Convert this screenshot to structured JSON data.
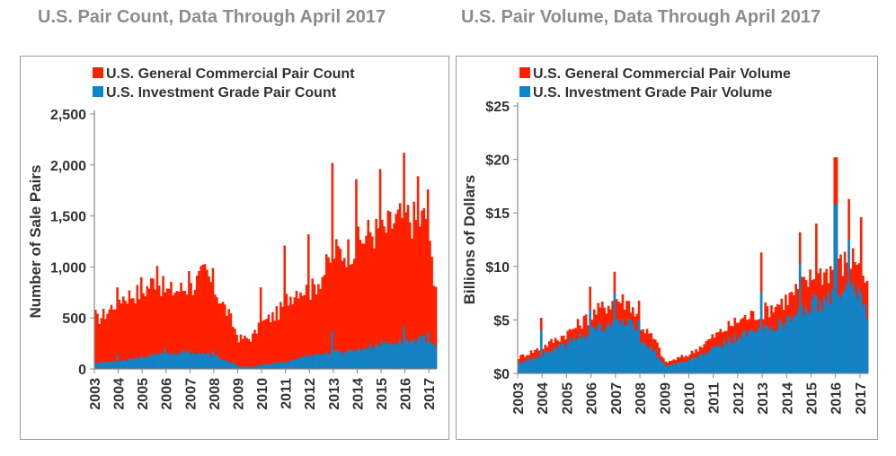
{
  "colors": {
    "general": "#ff2000",
    "investment": "#0a86cc",
    "title": "#8c8c8c",
    "axis": "#888888"
  },
  "chart_data": [
    {
      "type": "bar",
      "stacked": true,
      "title": "U.S. Pair Count, Data Through April 2017",
      "ylabel": "Number of Sale Pairs",
      "xlabel": "",
      "ylim": [
        0,
        2500
      ],
      "yticks": [
        0,
        500,
        1000,
        1500,
        2000,
        2500
      ],
      "ytick_labels": [
        "0",
        "500",
        "1,000",
        "1,500",
        "2,000",
        "2,500"
      ],
      "xtick_labels": [
        "2003",
        "2004",
        "2005",
        "2006",
        "2007",
        "2008",
        "2009",
        "2010",
        "2011",
        "2012",
        "2013",
        "2014",
        "2015",
        "2016",
        "2017"
      ],
      "start": "2003-01",
      "periods": 172,
      "frequency": "monthly",
      "legend": {
        "position": "top-left"
      },
      "series": [
        {
          "name": "U.S. General Commercial Pair Count",
          "key": "general",
          "anchors": [
            [
              2003.0,
              470
            ],
            [
              2003.5,
              560
            ],
            [
              2004.0,
              700
            ],
            [
              2005.0,
              760
            ],
            [
              2005.5,
              880
            ],
            [
              2006.0,
              760
            ],
            [
              2007.0,
              800
            ],
            [
              2007.6,
              950
            ],
            [
              2008.0,
              780
            ],
            [
              2008.6,
              520
            ],
            [
              2009.0,
              300
            ],
            [
              2009.5,
              300
            ],
            [
              2010.0,
              450
            ],
            [
              2010.7,
              560
            ],
            [
              2011.0,
              680
            ],
            [
              2011.5,
              800
            ],
            [
              2012.0,
              760
            ],
            [
              2012.5,
              920
            ],
            [
              2013.0,
              1150
            ],
            [
              2013.5,
              1150
            ],
            [
              2014.0,
              1230
            ],
            [
              2014.5,
              1350
            ],
            [
              2015.0,
              1330
            ],
            [
              2015.5,
              1450
            ],
            [
              2016.0,
              1500
            ],
            [
              2016.5,
              1450
            ],
            [
              2016.9,
              1500
            ],
            [
              2017.0,
              1150
            ],
            [
              2017.33,
              750
            ]
          ],
          "spikes": [
            [
              2003.0,
              580
            ],
            [
              2003.9,
              800
            ],
            [
              2004.9,
              900
            ],
            [
              2005.6,
              1010
            ],
            [
              2006.9,
              960
            ],
            [
              2007.9,
              990
            ],
            [
              2009.9,
              800
            ],
            [
              2010.9,
              1210
            ],
            [
              2011.9,
              1320
            ],
            [
              2012.95,
              2020
            ],
            [
              2013.9,
              1860
            ],
            [
              2014.95,
              1960
            ],
            [
              2015.9,
              2120
            ],
            [
              2016.5,
              1890
            ],
            [
              2016.9,
              1760
            ]
          ]
        },
        {
          "name": "U.S. Investment Grade Pair Count",
          "key": "investment",
          "anchors": [
            [
              2003.0,
              60
            ],
            [
              2004.0,
              80
            ],
            [
              2005.0,
              120
            ],
            [
              2006.0,
              150
            ],
            [
              2007.0,
              170
            ],
            [
              2008.0,
              130
            ],
            [
              2008.7,
              60
            ],
            [
              2009.0,
              25
            ],
            [
              2009.5,
              20
            ],
            [
              2010.0,
              40
            ],
            [
              2011.0,
              70
            ],
            [
              2012.0,
              140
            ],
            [
              2013.0,
              160
            ],
            [
              2014.0,
              190
            ],
            [
              2015.0,
              250
            ],
            [
              2016.0,
              270
            ],
            [
              2016.9,
              300
            ],
            [
              2017.33,
              220
            ]
          ],
          "spikes": [
            [
              2003.9,
              140
            ],
            [
              2005.9,
              200
            ],
            [
              2007.9,
              180
            ],
            [
              2012.95,
              380
            ],
            [
              2015.9,
              420
            ],
            [
              2016.9,
              360
            ]
          ]
        }
      ]
    },
    {
      "type": "bar",
      "stacked": true,
      "title": "U.S. Pair Volume, Data Through April 2017",
      "ylabel": "Billions of Dollars",
      "xlabel": "",
      "ylim": [
        0,
        25
      ],
      "yticks": [
        0,
        5,
        10,
        15,
        20,
        25
      ],
      "ytick_labels": [
        "$0",
        "$5",
        "$10",
        "$15",
        "$20",
        "$25"
      ],
      "xtick_labels": [
        "2003",
        "2004",
        "2005",
        "2006",
        "2007",
        "2008",
        "2009",
        "2010",
        "2011",
        "2012",
        "2013",
        "2014",
        "2015",
        "2016",
        "2017"
      ],
      "start": "2003-01",
      "periods": 172,
      "frequency": "monthly",
      "legend": {
        "position": "top-left"
      },
      "series": [
        {
          "name": "U.S. General Commercial Pair Volume",
          "key": "general",
          "anchors": [
            [
              2003.0,
              1.5
            ],
            [
              2004.0,
              2.5
            ],
            [
              2005.0,
              3.8
            ],
            [
              2006.0,
              5.5
            ],
            [
              2007.0,
              7.0
            ],
            [
              2007.6,
              6.5
            ],
            [
              2008.0,
              4.5
            ],
            [
              2008.6,
              3.0
            ],
            [
              2009.0,
              1.0
            ],
            [
              2010.0,
              1.8
            ],
            [
              2011.0,
              3.5
            ],
            [
              2012.0,
              5.0
            ],
            [
              2013.0,
              5.8
            ],
            [
              2014.0,
              7.0
            ],
            [
              2015.0,
              9.0
            ],
            [
              2016.0,
              10.0
            ],
            [
              2016.9,
              11.0
            ],
            [
              2017.33,
              7.5
            ]
          ],
          "spikes": [
            [
              2003.9,
              5.2
            ],
            [
              2005.9,
              8.1
            ],
            [
              2006.9,
              9.5
            ],
            [
              2007.9,
              6.8
            ],
            [
              2012.95,
              11.3
            ],
            [
              2014.5,
              13.2
            ],
            [
              2015.2,
              14.0
            ],
            [
              2015.96,
              20.2
            ],
            [
              2016.5,
              16.3
            ],
            [
              2017.0,
              14.6
            ]
          ]
        },
        {
          "name": "U.S. Investment Grade Pair Volume",
          "key": "investment",
          "anchors": [
            [
              2003.0,
              0.9
            ],
            [
              2004.0,
              1.8
            ],
            [
              2005.0,
              2.8
            ],
            [
              2006.0,
              4.0
            ],
            [
              2007.0,
              5.0
            ],
            [
              2007.6,
              4.5
            ],
            [
              2008.0,
              3.0
            ],
            [
              2008.6,
              2.0
            ],
            [
              2009.0,
              0.7
            ],
            [
              2010.0,
              1.2
            ],
            [
              2011.0,
              2.3
            ],
            [
              2012.0,
              3.5
            ],
            [
              2013.0,
              4.0
            ],
            [
              2014.0,
              5.0
            ],
            [
              2015.0,
              6.5
            ],
            [
              2016.0,
              7.0
            ],
            [
              2016.9,
              8.0
            ],
            [
              2017.33,
              5.5
            ]
          ],
          "spikes": [
            [
              2003.9,
              4.0
            ],
            [
              2005.9,
              6.0
            ],
            [
              2006.9,
              7.5
            ],
            [
              2007.9,
              5.0
            ],
            [
              2012.95,
              7.6
            ],
            [
              2014.5,
              10.2
            ],
            [
              2015.96,
              15.8
            ],
            [
              2016.5,
              12.5
            ]
          ]
        }
      ]
    }
  ]
}
